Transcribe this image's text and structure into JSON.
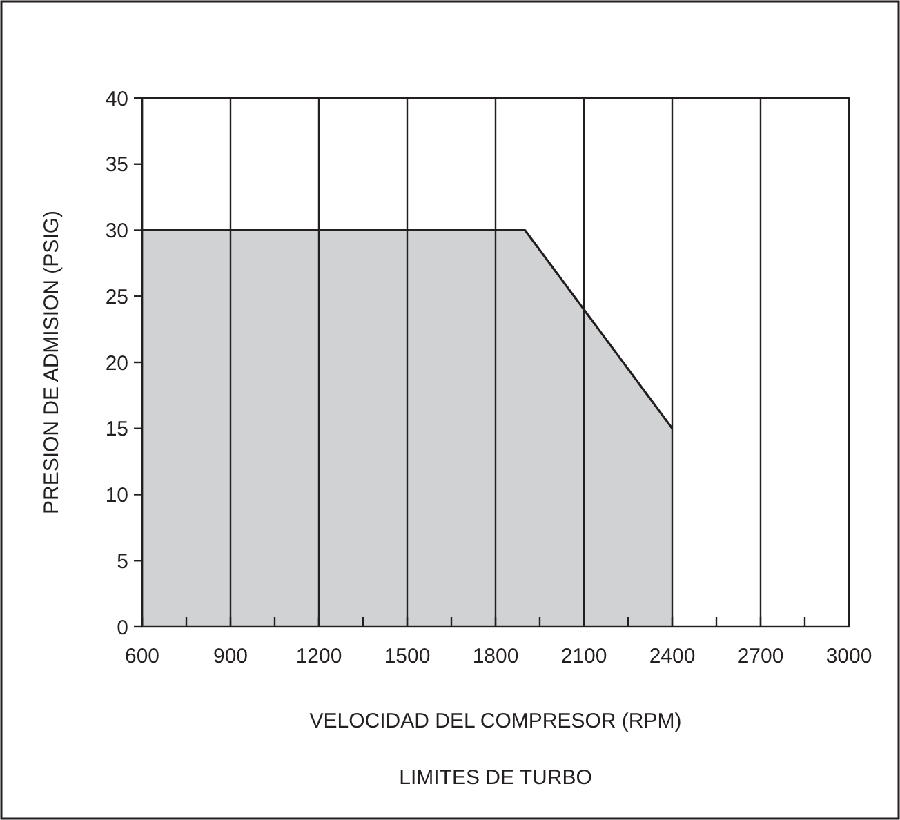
{
  "chart_data": {
    "type": "area",
    "title": "LIMITES DE TURBO",
    "xlabel": "VELOCIDAD DEL COMPRESOR (RPM)",
    "ylabel": "PRESION DE ADMISION (PSIG)",
    "x": [
      600,
      1900,
      2400
    ],
    "series": [
      {
        "color": "#d1d2d4",
        "values": [
          30,
          30,
          15
        ]
      }
    ],
    "xlim": [
      600,
      3000
    ],
    "ylim": [
      0,
      40
    ],
    "xticks": [
      600,
      {
        "value": 750,
        "label": null
      },
      900,
      {
        "value": 1050,
        "label": null
      },
      1200,
      {
        "value": 1350,
        "label": null
      },
      1500,
      {
        "value": 1650,
        "label": null
      },
      1800,
      {
        "value": 1950,
        "label": null
      },
      2100,
      {
        "value": 2250,
        "label": null
      },
      2400,
      {
        "value": 2550,
        "label": null
      },
      2700,
      {
        "value": 2850,
        "label": null
      },
      3000
    ],
    "yticks": [
      0,
      5,
      10,
      15,
      20,
      25,
      30,
      35,
      40
    ],
    "grid": "x"
  }
}
